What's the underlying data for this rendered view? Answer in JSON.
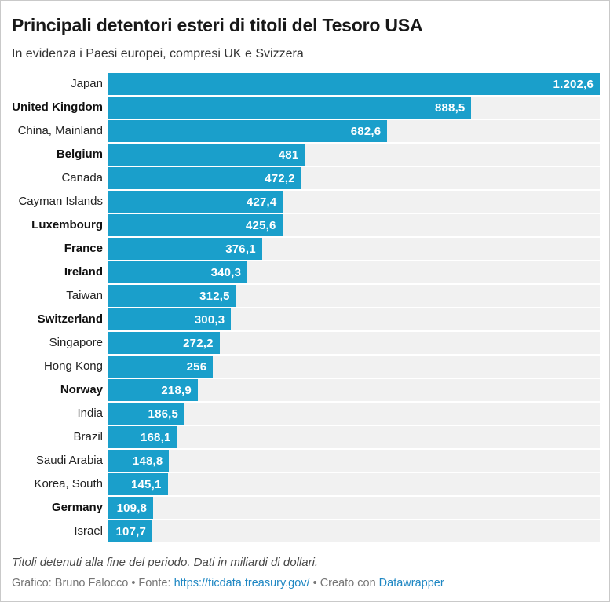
{
  "header": {
    "title": "Principali detentori esteri di titoli del Tesoro USA",
    "subtitle": "In evidenza i Paesi europei, compresi UK e Svizzera"
  },
  "chart_data": {
    "type": "bar",
    "orientation": "horizontal",
    "title": "Principali detentori esteri di titoli del Tesoro USA",
    "subtitle": "In evidenza i Paesi europei, compresi UK e Svizzera",
    "unit": "miliardi di dollari",
    "xlim": [
      0,
      1202.6
    ],
    "grid": false,
    "legend": false,
    "categories": [
      "Japan",
      "United Kingdom",
      "China, Mainland",
      "Belgium",
      "Canada",
      "Cayman Islands",
      "Luxembourg",
      "France",
      "Ireland",
      "Taiwan",
      "Switzerland",
      "Singapore",
      "Hong Kong",
      "Norway",
      "India",
      "Brazil",
      "Saudi Arabia",
      "Korea, South",
      "Germany",
      "Israel"
    ],
    "values": [
      1202.6,
      888.5,
      682.6,
      481,
      472.2,
      427.4,
      425.6,
      376.1,
      340.3,
      312.5,
      300.3,
      272.2,
      256,
      218.9,
      186.5,
      168.1,
      148.8,
      145.1,
      109.8,
      107.7
    ],
    "value_labels": [
      "1.202,6",
      "888,5",
      "682,6",
      "481",
      "472,2",
      "427,4",
      "425,6",
      "376,1",
      "340,3",
      "312,5",
      "300,3",
      "272,2",
      "256",
      "218,9",
      "186,5",
      "168,1",
      "148,8",
      "145,1",
      "109,8",
      "107,7"
    ],
    "highlighted_bold": [
      false,
      true,
      false,
      true,
      false,
      false,
      true,
      true,
      true,
      false,
      true,
      false,
      false,
      true,
      false,
      false,
      false,
      false,
      true,
      false
    ],
    "bar_color": "#1a9fcb",
    "track_color": "#f1f1f1",
    "value_text_color": "#ffffff"
  },
  "footer": {
    "note": "Titoli detenuti alla fine del periodo. Dati in miliardi di dollari.",
    "credit_prefix": "Grafico: Bruno Falocco • Fonte: ",
    "source_link": "https://ticdata.treasury.gov/",
    "credit_middle": " • Creato con ",
    "tool_link": "Datawrapper",
    "link_color": "#1e87c3"
  }
}
